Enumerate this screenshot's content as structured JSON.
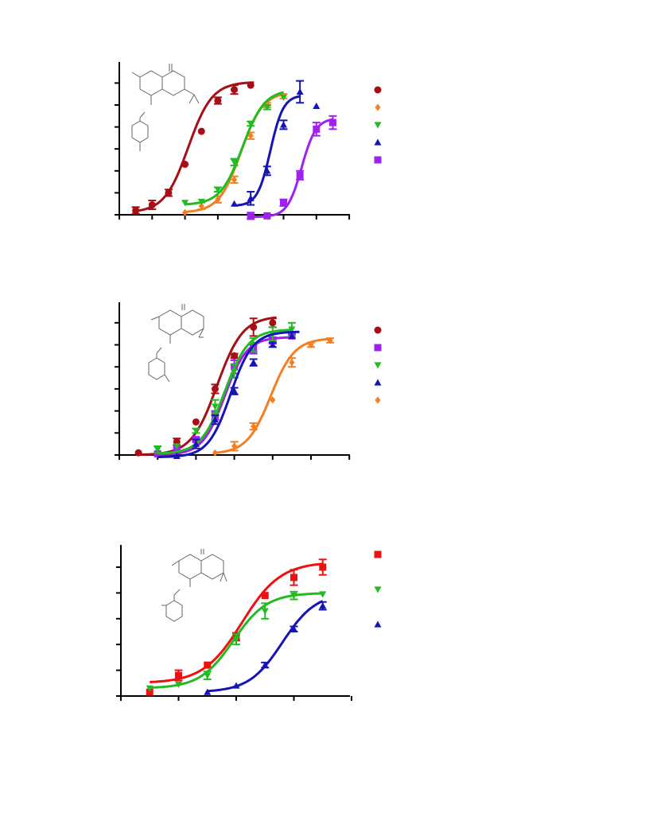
{
  "page": {
    "background": "#ffffff"
  },
  "chart_data": [
    {
      "type": "line",
      "title": "",
      "xlabel": "",
      "ylabel": "",
      "xlim": [
        0,
        7
      ],
      "ylim": [
        0,
        7
      ],
      "grid": false,
      "legend": "right",
      "series": [
        {
          "color": "#a50f15",
          "marker": "circle",
          "x": [
            0.5,
            1.0,
            1.5,
            2.0,
            2.5,
            3.0,
            3.5,
            4.0
          ],
          "y": [
            0.2,
            0.45,
            1.0,
            2.3,
            3.8,
            5.2,
            5.7,
            5.9
          ],
          "err": [
            0.15,
            0.2,
            0.15,
            0,
            0,
            0.15,
            0.2,
            0
          ],
          "fit": {
            "bottom": 0.1,
            "top": 6.05,
            "ec50": 2.1,
            "hill": 1.2,
            "x": [
              0.4,
              4.1
            ]
          }
        },
        {
          "color": "#f28022",
          "marker": "diamond",
          "x": [
            2.0,
            2.5,
            3.0,
            3.5,
            4.0,
            4.5,
            5.0
          ],
          "y": [
            0.1,
            0.4,
            0.7,
            1.6,
            3.6,
            5.0,
            5.4
          ],
          "err": [
            0,
            0.15,
            0.15,
            0.15,
            0.15,
            0.1,
            0.1
          ],
          "fit": {
            "bottom": 0.1,
            "top": 5.6,
            "ec50": 3.7,
            "hill": 1.3,
            "x": [
              2.0,
              5.0
            ]
          }
        },
        {
          "color": "#22bb22",
          "marker": "triangle-down",
          "x": [
            2.0,
            2.5,
            3.0,
            3.5,
            4.0,
            4.5,
            5.0
          ],
          "y": [
            0.55,
            0.6,
            1.15,
            2.4,
            4.15,
            4.9,
            5.35
          ],
          "err": [
            0,
            0,
            0.1,
            0.15,
            0.1,
            0.1,
            0
          ],
          "fit": {
            "bottom": 0.45,
            "top": 5.7,
            "ec50": 3.75,
            "hill": 1.3,
            "x": [
              2.0,
              5.0
            ]
          }
        },
        {
          "color": "#1515b5",
          "marker": "triangle-up",
          "x": [
            3.5,
            4.0,
            4.5,
            5.0,
            5.5,
            6.0
          ],
          "y": [
            0.5,
            0.75,
            2.0,
            4.1,
            5.6,
            4.95
          ],
          "err": [
            0,
            0.3,
            0.2,
            0.2,
            0.5,
            0
          ],
          "fit": {
            "bottom": 0.4,
            "top": 5.45,
            "ec50": 4.6,
            "hill": 2.2,
            "x": [
              3.5,
              5.5
            ]
          }
        },
        {
          "color": "#a020f0",
          "marker": "square",
          "x": [
            4.0,
            4.5,
            5.0,
            5.5,
            6.0,
            6.5
          ],
          "y": [
            -0.05,
            -0.05,
            0.55,
            1.8,
            3.9,
            4.2
          ],
          "err": [
            0.15,
            0,
            0.15,
            0.2,
            0.3,
            0.3
          ],
          "fit": {
            "bottom": -0.1,
            "top": 4.4,
            "ec50": 5.55,
            "hill": 2.0,
            "x": [
              4.0,
              6.5
            ]
          }
        }
      ]
    },
    {
      "type": "line",
      "title": "",
      "xlabel": "",
      "ylabel": "",
      "xlim": [
        0,
        6
      ],
      "ylim": [
        0,
        7
      ],
      "grid": false,
      "legend": "right",
      "series": [
        {
          "color": "#a50f15",
          "marker": "circle",
          "x": [
            0.5,
            1.5,
            2.0,
            2.5,
            3.0,
            3.5,
            4.0
          ],
          "y": [
            0.1,
            0.6,
            1.5,
            3.0,
            4.5,
            5.8,
            6.0
          ],
          "err": [
            0,
            0.15,
            0,
            0.2,
            0.1,
            0.4,
            0.2
          ],
          "fit": {
            "bottom": 0.0,
            "top": 6.3,
            "ec50": 2.55,
            "hill": 1.3,
            "x": [
              0.5,
              4.1
            ]
          }
        },
        {
          "color": "#a020f0",
          "marker": "square",
          "x": [
            1.0,
            1.5,
            2.0,
            2.5,
            3.0,
            3.5,
            4.0,
            4.5
          ],
          "y": [
            0.05,
            0.3,
            0.7,
            1.8,
            4.0,
            4.8,
            5.2,
            5.4
          ],
          "err": [
            0,
            0,
            0.1,
            0.2,
            0.3,
            0.2,
            0.15,
            0.1
          ],
          "fit": {
            "bottom": 0.0,
            "top": 5.35,
            "ec50": 2.75,
            "hill": 1.5,
            "x": [
              1.0,
              4.5
            ]
          }
        },
        {
          "color": "#22bb22",
          "marker": "triangle-down",
          "x": [
            1.0,
            1.5,
            2.0,
            2.5,
            3.0,
            3.5,
            4.0,
            4.5
          ],
          "y": [
            0.25,
            0.4,
            1.1,
            2.2,
            3.8,
            5.0,
            5.5,
            5.7
          ],
          "err": [
            0.15,
            0,
            0.1,
            0.3,
            0.3,
            0.3,
            0.3,
            0.3
          ],
          "fit": {
            "bottom": 0.05,
            "top": 5.7,
            "ec50": 2.75,
            "hill": 1.4,
            "x": [
              1.0,
              4.5
            ]
          }
        },
        {
          "color": "#1515b5",
          "marker": "triangle-up",
          "x": [
            1.5,
            2.0,
            2.5,
            3.0,
            3.5,
            4.0,
            4.5
          ],
          "y": [
            -0.05,
            0.5,
            1.6,
            2.9,
            4.2,
            5.0,
            5.4
          ],
          "err": [
            0,
            0.2,
            0.2,
            0.15,
            0.15,
            0.1,
            0
          ],
          "fit": {
            "bottom": -0.1,
            "top": 5.6,
            "ec50": 2.9,
            "hill": 1.5,
            "x": [
              1.0,
              4.7
            ]
          }
        },
        {
          "color": "#f28022",
          "marker": "diamond",
          "x": [
            2.5,
            3.0,
            3.5,
            4.0,
            4.5,
            5.0,
            5.5
          ],
          "y": [
            0.1,
            0.4,
            1.3,
            2.5,
            4.2,
            5.0,
            5.2
          ],
          "err": [
            0,
            0.2,
            0.15,
            0,
            0.2,
            0.1,
            0.1
          ],
          "fit": {
            "bottom": 0.05,
            "top": 5.3,
            "ec50": 3.95,
            "hill": 1.4,
            "x": [
              2.5,
              5.5
            ]
          }
        }
      ]
    },
    {
      "type": "line",
      "title": "",
      "xlabel": "",
      "ylabel": "",
      "xlim": [
        0,
        4
      ],
      "ylim": [
        0,
        5.5
      ],
      "grid": false,
      "legend": "right",
      "series": [
        {
          "color": "#ee1111",
          "marker": "square",
          "x": [
            0.5,
            1.0,
            1.5,
            2.0,
            2.5,
            3.0,
            3.5
          ],
          "y": [
            0.15,
            0.8,
            1.2,
            2.3,
            3.9,
            4.6,
            5.0
          ],
          "err": [
            0,
            0.2,
            0,
            0.15,
            0,
            0.3,
            0.3
          ],
          "fit": {
            "bottom": 0.5,
            "top": 5.2,
            "ec50": 2.1,
            "hill": 1.3,
            "x": [
              0.5,
              3.5
            ]
          }
        },
        {
          "color": "#22bb22",
          "marker": "triangle-down",
          "x": [
            0.5,
            1.0,
            1.5,
            2.0,
            2.5,
            3.0,
            3.5
          ],
          "y": [
            0.3,
            0.45,
            0.8,
            2.2,
            3.3,
            3.9,
            3.95
          ],
          "err": [
            0,
            0,
            0.15,
            0.2,
            0.3,
            0.15,
            0
          ],
          "fit": {
            "bottom": 0.3,
            "top": 4.0,
            "ec50": 1.95,
            "hill": 1.5,
            "x": [
              0.5,
              3.5
            ]
          }
        },
        {
          "color": "#1515b5",
          "marker": "triangle-up",
          "x": [
            1.5,
            2.0,
            2.5,
            3.0,
            3.5
          ],
          "y": [
            0.15,
            0.4,
            1.2,
            2.6,
            3.5
          ],
          "err": [
            0,
            0,
            0.1,
            0.1,
            0.15
          ],
          "fit": {
            "bottom": 0.15,
            "top": 4.0,
            "ec50": 2.8,
            "hill": 1.5,
            "x": [
              1.5,
              3.5
            ]
          }
        }
      ]
    }
  ]
}
